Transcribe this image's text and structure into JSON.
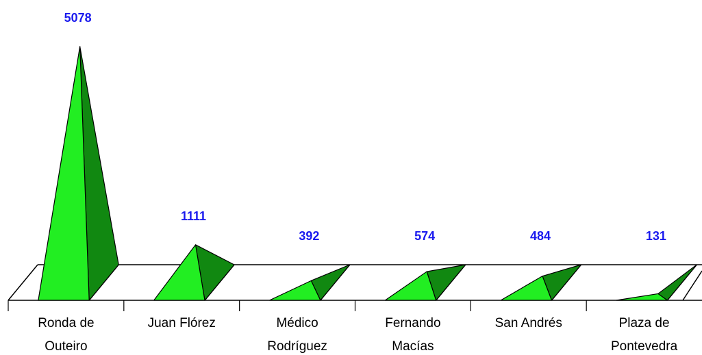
{
  "chart_data": {
    "type": "bar",
    "bar_shape": "3d-pyramid",
    "categories": [
      [
        "Ronda de",
        "Outeiro"
      ],
      [
        "Juan Flórez"
      ],
      [
        "Médico",
        "Rodríguez"
      ],
      [
        "Fernando",
        "Macías"
      ],
      [
        "San Andrés"
      ],
      [
        "Plaza de",
        "Pontevedra"
      ]
    ],
    "values": [
      5078,
      1111,
      392,
      574,
      484,
      131
    ],
    "data_labels": [
      "5078",
      "1111",
      "392",
      "574",
      "484",
      "131"
    ],
    "title": "",
    "xlabel": "",
    "ylabel": "",
    "ylim": [
      0,
      5078
    ],
    "grid": false,
    "legend": "none",
    "colors": {
      "front_face": "#22ee22",
      "side_face": "#118811",
      "floor": "#ffffff",
      "outline": "#000000",
      "label": "#1a1aee"
    }
  }
}
